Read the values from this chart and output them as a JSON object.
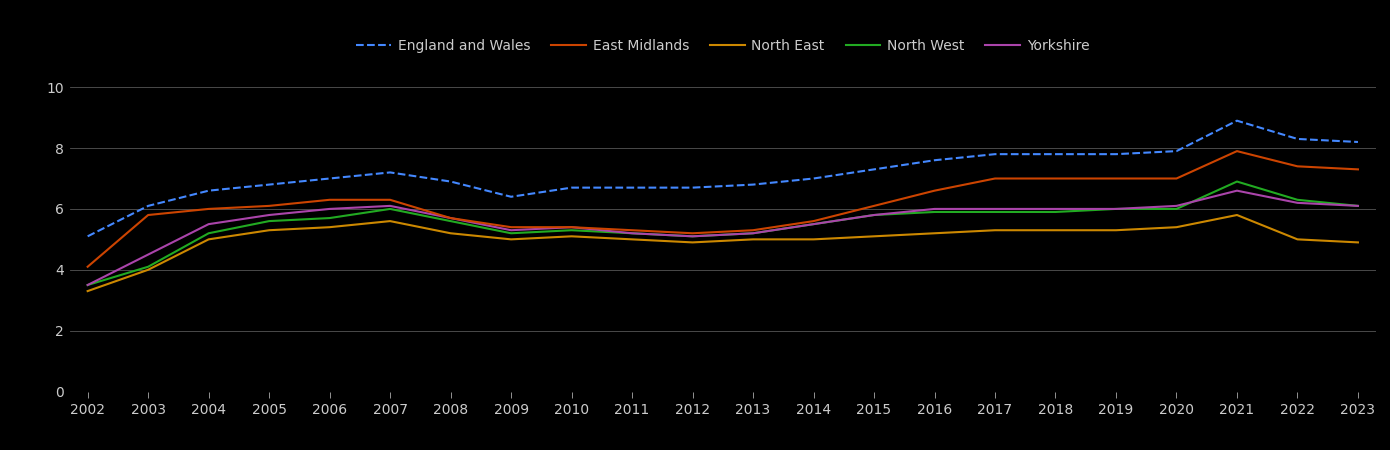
{
  "years": [
    2002,
    2003,
    2004,
    2005,
    2006,
    2007,
    2008,
    2009,
    2010,
    2011,
    2012,
    2013,
    2014,
    2015,
    2016,
    2017,
    2018,
    2019,
    2020,
    2021,
    2022,
    2023
  ],
  "england_wales": [
    5.1,
    6.1,
    6.6,
    6.8,
    7.0,
    7.2,
    6.9,
    6.4,
    6.7,
    6.7,
    6.7,
    6.8,
    7.0,
    7.3,
    7.6,
    7.8,
    7.8,
    7.8,
    7.9,
    8.9,
    8.3,
    8.2
  ],
  "east_midlands": [
    4.1,
    5.8,
    6.0,
    6.1,
    6.3,
    6.3,
    5.7,
    5.4,
    5.4,
    5.3,
    5.2,
    5.3,
    5.6,
    6.1,
    6.6,
    7.0,
    7.0,
    7.0,
    7.0,
    7.9,
    7.4,
    7.3
  ],
  "north_east": [
    3.3,
    4.0,
    5.0,
    5.3,
    5.4,
    5.6,
    5.2,
    5.0,
    5.1,
    5.0,
    4.9,
    5.0,
    5.0,
    5.1,
    5.2,
    5.3,
    5.3,
    5.3,
    5.4,
    5.8,
    5.0,
    4.9
  ],
  "north_west": [
    3.5,
    4.1,
    5.2,
    5.6,
    5.7,
    6.0,
    5.6,
    5.2,
    5.3,
    5.2,
    5.1,
    5.2,
    5.5,
    5.8,
    5.9,
    5.9,
    5.9,
    6.0,
    6.0,
    6.9,
    6.3,
    6.1
  ],
  "yorkshire": [
    3.5,
    4.5,
    5.5,
    5.8,
    6.0,
    6.1,
    5.7,
    5.3,
    5.4,
    5.2,
    5.1,
    5.2,
    5.5,
    5.8,
    6.0,
    6.0,
    6.0,
    6.0,
    6.1,
    6.6,
    6.2,
    6.1
  ],
  "england_wales_color": "#4488ff",
  "east_midlands_color": "#cc4400",
  "north_east_color": "#cc8800",
  "north_west_color": "#22aa22",
  "yorkshire_color": "#aa44aa",
  "background_color": "#000000",
  "grid_color": "#555555",
  "text_color": "#cccccc",
  "ylim": [
    0,
    10.5
  ],
  "yticks": [
    0,
    2,
    4,
    6,
    8,
    10
  ],
  "figsize": [
    13.9,
    4.5
  ],
  "dpi": 100
}
